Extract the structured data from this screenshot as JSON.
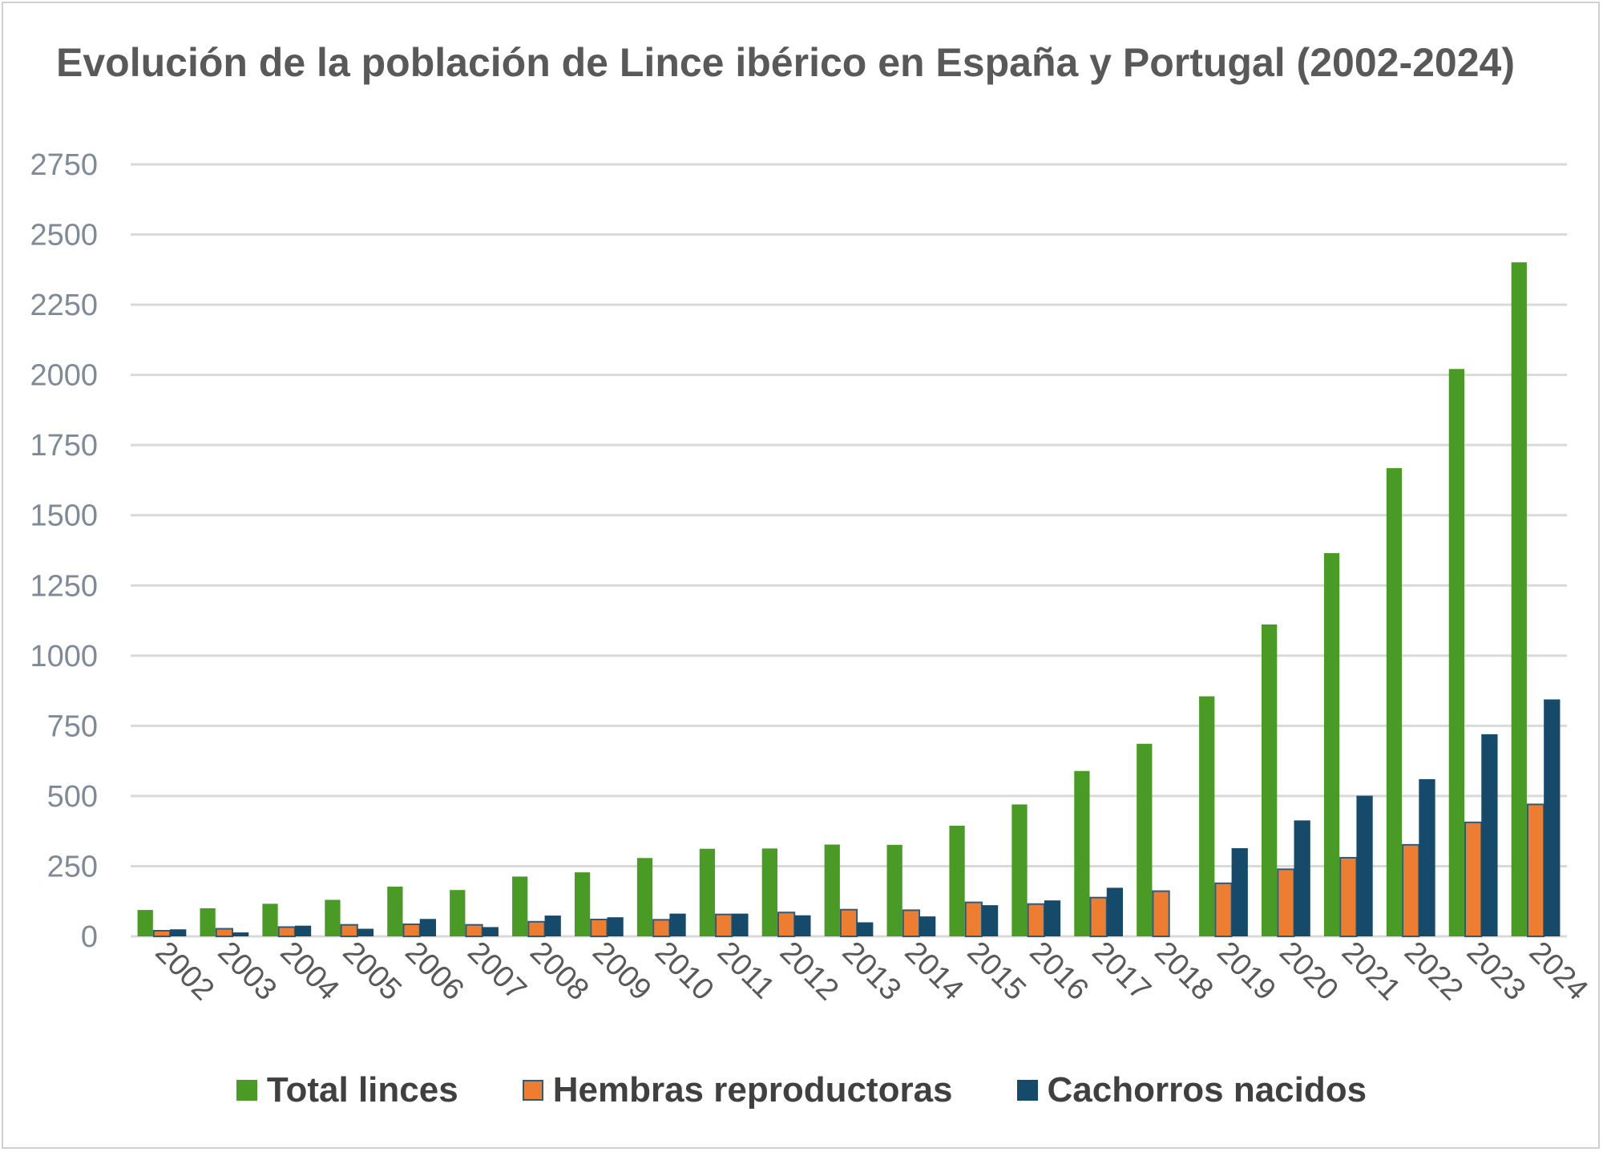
{
  "chart_data": {
    "type": "bar",
    "title": "Evolución de la población de Lince ibérico en España y Portugal (2002-2024)",
    "xlabel": "",
    "ylabel": "",
    "ylim": [
      0,
      2750
    ],
    "yticks": [
      0,
      250,
      500,
      750,
      1000,
      1250,
      1500,
      1750,
      2000,
      2250,
      2500,
      2750
    ],
    "grid": true,
    "legend": "bottom",
    "categories": [
      "2002",
      "2003",
      "2004",
      "2005",
      "2006",
      "2007",
      "2008",
      "2009",
      "2010",
      "2011",
      "2012",
      "2013",
      "2014",
      "2015",
      "2016",
      "2017",
      "2018",
      "2019",
      "2020",
      "2021",
      "2022",
      "2023",
      "2024"
    ],
    "series": [
      {
        "name": "Total linces",
        "color": "#4a9a26",
        "values": [
          94,
          100,
          116,
          130,
          177,
          165,
          213,
          228,
          279,
          312,
          313,
          327,
          326,
          394,
          470,
          589,
          686,
          855,
          1111,
          1365,
          1668,
          2021,
          2401
        ]
      },
      {
        "name": "Hembras reproductoras",
        "color": "#ed7d31",
        "values": [
          20,
          27,
          33,
          41,
          43,
          41,
          52,
          60,
          59,
          78,
          85,
          95,
          93,
          121,
          115,
          138,
          161,
          189,
          239,
          280,
          326,
          406,
          470
        ]
      },
      {
        "name": "Cachorros nacidos",
        "color": "#154a6a",
        "values": [
          25,
          14,
          38,
          27,
          62,
          33,
          74,
          68,
          81,
          81,
          75,
          50,
          71,
          111,
          128,
          173,
          null,
          314,
          413,
          501,
          560,
          720,
          844
        ]
      }
    ]
  }
}
